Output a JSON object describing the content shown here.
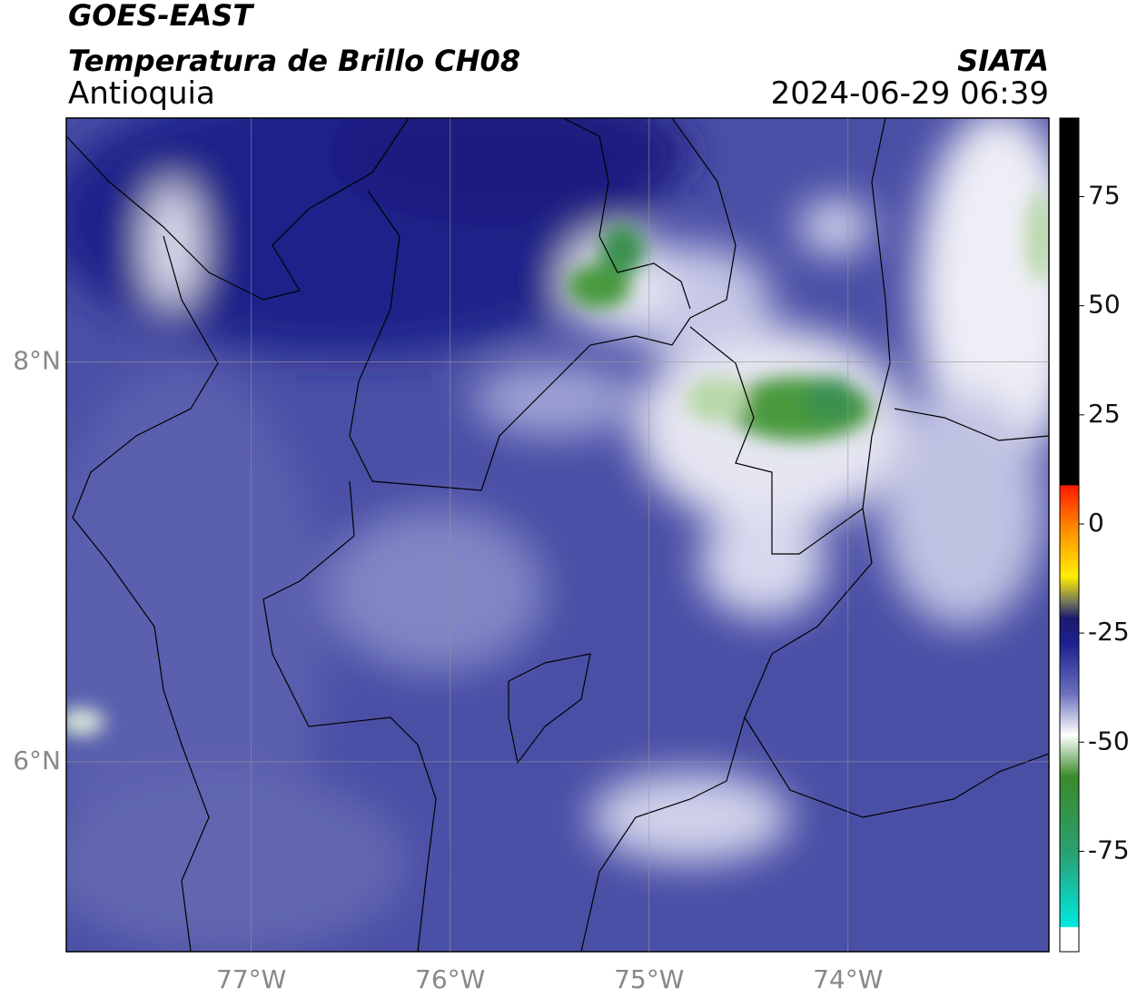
{
  "header": {
    "satellite": "GOES-EAST",
    "product": "Temperatura de Brillo CH08",
    "region": "Antioquia",
    "source": "SIATA",
    "datetime": "2024-06-29 06:39"
  },
  "map": {
    "xlim": [
      -77.93,
      -72.99
    ],
    "ylim": [
      5.05,
      9.22
    ],
    "xticks": [
      {
        "value": -77,
        "label": "77°W"
      },
      {
        "value": -76,
        "label": "76°W"
      },
      {
        "value": -75,
        "label": "75°W"
      },
      {
        "value": -74,
        "label": "74°W"
      }
    ],
    "yticks": [
      {
        "value": 6,
        "label": "6°N"
      },
      {
        "value": 8,
        "label": "8°N"
      }
    ],
    "grid": true
  },
  "colorbar": {
    "clim": [
      -98,
      93
    ],
    "ticks": [
      75,
      50,
      25,
      0,
      -25,
      -50,
      -75
    ]
  }
}
